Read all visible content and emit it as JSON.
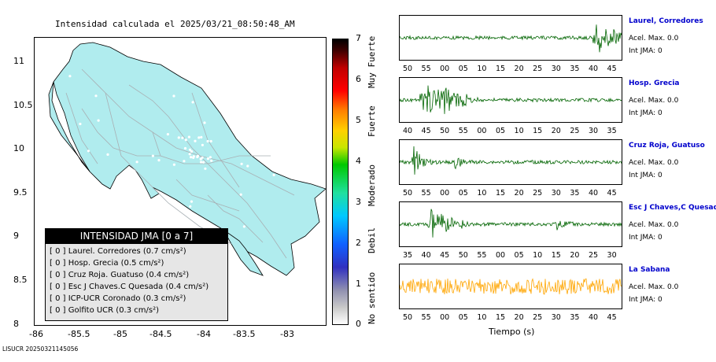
{
  "map": {
    "title": "Intensidad calculada el 2025/03/21_08:50:48_AM",
    "y_ticks": [
      "11",
      "10.5",
      "10",
      "9.5",
      "9",
      "8.5",
      "8"
    ],
    "x_ticks": [
      "-86",
      "-85.5",
      "-85",
      "-84.5",
      "-84",
      "-83.5",
      "-83"
    ],
    "land_color": "#b0ecee",
    "road_color": "#a8b0b4"
  },
  "legend": {
    "title": "INTENSIDAD JMA [0 a 7]",
    "items": [
      "[ 0 ]  Laurel. Corredores (0.7 cm/s²)",
      "[ 0 ]  Hosp. Grecia (0.5 cm/s²)",
      "[ 0 ]  Cruz Roja. Guatuso (0.4 cm/s²)",
      "[ 0 ]  Esc J Chaves.C Quesada (0.4 cm/s²)",
      "[ 0 ]  ICP-UCR Coronado (0.3 cm/s²)",
      "[ 0 ]  Golfito UCR (0.3 cm/s²)"
    ]
  },
  "colorbar": {
    "numbers": [
      "7",
      "6",
      "5",
      "4",
      "3",
      "2",
      "1",
      "0"
    ],
    "words": [
      "Muy Fuerte",
      "Fuerte",
      "Moderado",
      "Debil",
      "No sentido"
    ]
  },
  "footer_id": "LISUCR 20250321145056",
  "waveforms": [
    {
      "station": "Laurel, Corredores",
      "acel": "Acel. Max. 0.0",
      "jma": "Int JMA: 0",
      "ticks": [
        "50",
        "55",
        "00",
        "05",
        "10",
        "15",
        "20",
        "25",
        "30",
        "35",
        "40",
        "45"
      ],
      "color": "#006400"
    },
    {
      "station": "Hosp. Grecia",
      "acel": "Acel. Max. 0.0",
      "jma": "Int JMA: 0",
      "ticks": [
        "40",
        "45",
        "50",
        "55",
        "00",
        "05",
        "10",
        "15",
        "20",
        "25",
        "30",
        "35"
      ],
      "color": "#006400"
    },
    {
      "station": "Cruz Roja, Guatuso",
      "acel": "Acel. Max. 0.0",
      "jma": "Int JMA: 0",
      "ticks": [
        "50",
        "55",
        "00",
        "05",
        "10",
        "15",
        "20",
        "25",
        "30",
        "35",
        "40",
        "45"
      ],
      "color": "#006400"
    },
    {
      "station": "Esc J Chaves,C Quesada",
      "acel": "Acel. Max. 0.0",
      "jma": "Int JMA: 0",
      "ticks": [
        "35",
        "40",
        "45",
        "50",
        "55",
        "00",
        "05",
        "10",
        "15",
        "20",
        "25",
        "30"
      ],
      "color": "#006400"
    },
    {
      "station": "La Sabana",
      "acel": "Acel. Max. 0.0",
      "jma": "Int JMA: 0",
      "ticks": [
        "50",
        "55",
        "00",
        "05",
        "10",
        "15",
        "20",
        "25",
        "30",
        "35",
        "40",
        "45"
      ],
      "color": "#ffa500"
    }
  ],
  "time_axis_label": "Tiempo (s)"
}
